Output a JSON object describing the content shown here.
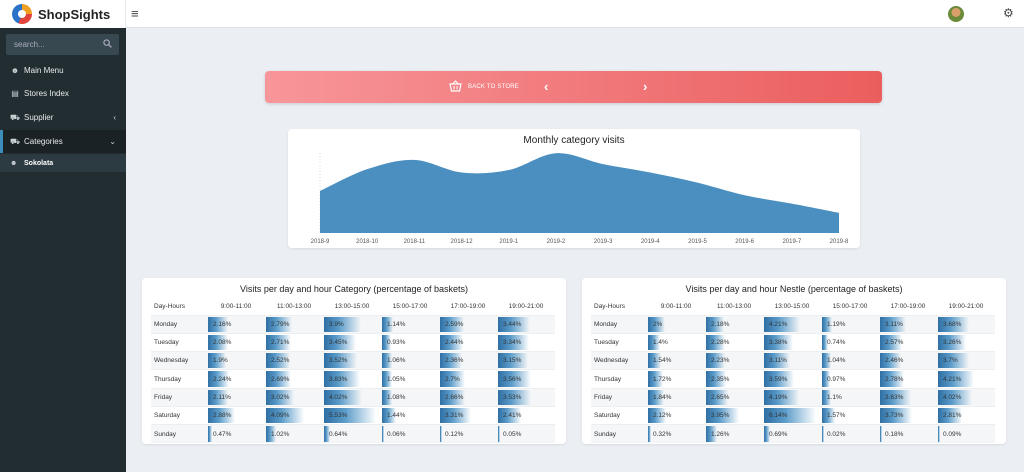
{
  "app": {
    "name": "ShopSights",
    "menu_toggle": "≡"
  },
  "search": {
    "placeholder": "search..."
  },
  "sidebar": {
    "items": [
      {
        "label": "Main Menu",
        "icon": "users-icon"
      },
      {
        "label": "Stores Index",
        "icon": "database-icon"
      },
      {
        "label": "Supplier",
        "icon": "cart-icon",
        "arrow": "‹"
      },
      {
        "label": "Categories",
        "icon": "cart-icon",
        "arrow": "⌄"
      }
    ],
    "sub_item": "Sokolata"
  },
  "nav": {
    "back_label": "BACK TO STORE",
    "prev": "‹",
    "next": "›"
  },
  "chart_data": {
    "type": "area",
    "title": "Monthly category visits",
    "x": [
      "2018-9",
      "2018-10",
      "2018-11",
      "2018-12",
      "2019-1",
      "2019-2",
      "2019-3",
      "2019-4",
      "2019-5",
      "2019-6",
      "2019-7",
      "2019-8"
    ],
    "y": [
      50,
      76,
      87,
      72,
      75,
      95,
      82,
      72,
      60,
      45,
      35,
      24
    ],
    "ylim": [
      0,
      100
    ],
    "color": "#4a8fc0"
  },
  "tables": [
    {
      "title": "Visits per day and hour Category (percentage of baskets)",
      "headers": [
        "Day-Hours",
        "9:00-11:00",
        "11:00-13:00",
        "13:00-15:00",
        "15:00-17:00",
        "17:00-19:00",
        "19:00-21:00"
      ],
      "rows": [
        {
          "day": "Monday",
          "values": [
            "2.16%",
            "2.79%",
            "3.9%",
            "1.14%",
            "2.59%",
            "3.44%"
          ]
        },
        {
          "day": "Tuesday",
          "values": [
            "2.08%",
            "2.71%",
            "3.45%",
            "0.93%",
            "2.44%",
            "3.34%"
          ]
        },
        {
          "day": "Wednesday",
          "values": [
            "1.9%",
            "2.52%",
            "3.52%",
            "1.06%",
            "2.36%",
            "3.15%"
          ]
        },
        {
          "day": "Thursday",
          "values": [
            "2.24%",
            "2.69%",
            "3.83%",
            "1.05%",
            "2.7%",
            "3.56%"
          ]
        },
        {
          "day": "Friday",
          "values": [
            "2.11%",
            "3.02%",
            "4.02%",
            "1.08%",
            "2.66%",
            "3.53%"
          ]
        },
        {
          "day": "Saturday",
          "values": [
            "2.88%",
            "4.09%",
            "5.53%",
            "1.44%",
            "3.31%",
            "2.41%"
          ]
        },
        {
          "day": "Sunday",
          "values": [
            "0.47%",
            "1.02%",
            "0.64%",
            "0.06%",
            "0.12%",
            "0.05%"
          ]
        }
      ]
    },
    {
      "title": "Visits per day and hour Nestle (percentage of baskets)",
      "headers": [
        "Day-Hours",
        "9:00-11:00",
        "11:00-13:00",
        "13:00-15:00",
        "15:00-17:00",
        "17:00-19:00",
        "19:00-21:00"
      ],
      "rows": [
        {
          "day": "Monday",
          "values": [
            "2%",
            "2.18%",
            "4.21%",
            "1.19%",
            "3.11%",
            "3.68%"
          ]
        },
        {
          "day": "Tuesday",
          "values": [
            "1.4%",
            "2.28%",
            "3.38%",
            "0.74%",
            "2.57%",
            "3.26%"
          ]
        },
        {
          "day": "Wednesday",
          "values": [
            "1.54%",
            "2.23%",
            "3.11%",
            "1.04%",
            "2.46%",
            "3.7%"
          ]
        },
        {
          "day": "Thursday",
          "values": [
            "1.72%",
            "2.35%",
            "3.59%",
            "0.97%",
            "2.78%",
            "4.21%"
          ]
        },
        {
          "day": "Friday",
          "values": [
            "1.84%",
            "2.65%",
            "4.19%",
            "1.1%",
            "3.63%",
            "4.02%"
          ]
        },
        {
          "day": "Saturday",
          "values": [
            "2.12%",
            "3.95%",
            "6.14%",
            "1.57%",
            "3.73%",
            "2.81%"
          ]
        },
        {
          "day": "Sunday",
          "values": [
            "0.32%",
            "1.26%",
            "0.69%",
            "0.02%",
            "0.18%",
            "0.09%"
          ]
        }
      ]
    }
  ]
}
